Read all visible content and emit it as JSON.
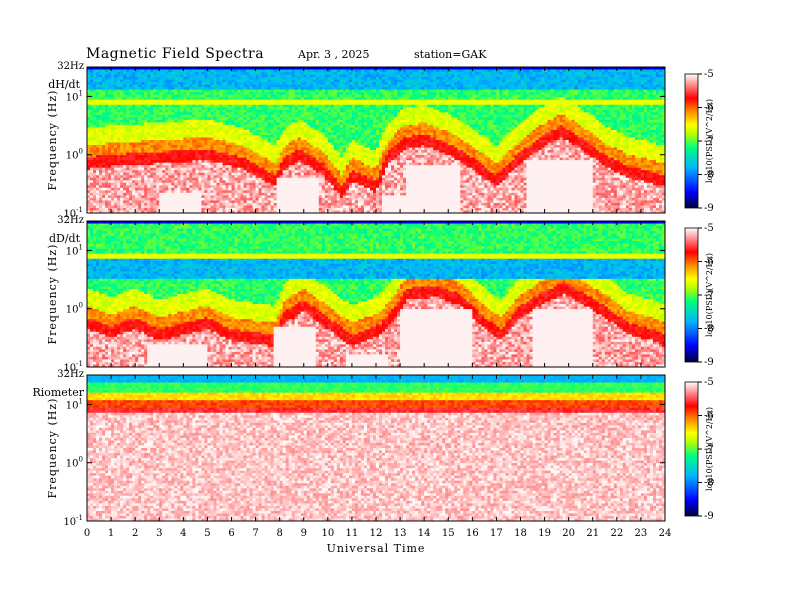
{
  "header": {
    "title": "Magnetic  Field  Spectra",
    "date": "Apr. 3  , 2025",
    "station": "station=GAK"
  },
  "colors": {
    "scale": [
      "#00003c",
      "#0000ff",
      "#00b4ff",
      "#00ff80",
      "#b4ff00",
      "#ffff00",
      "#ff8c00",
      "#ff0000",
      "#ffffff"
    ],
    "background": "#ffffff",
    "axes": "#000000"
  },
  "chart_data": [
    {
      "type": "heatmap",
      "panel_label": "dH/dt",
      "ylabel": "Frequency  (Hz)",
      "xlabel": "Universal  Time",
      "xlim": [
        0,
        24
      ],
      "ylim": [
        0.1,
        32
      ],
      "y_scale": "log",
      "y_ticks": [
        {
          "base": "10",
          "exp": "-1"
        },
        {
          "base": "10",
          "exp": "0"
        },
        {
          "base": "10",
          "exp": "1"
        }
      ],
      "y_top_label": "32Hz",
      "x_ticks": [
        "0",
        "1",
        "2",
        "3",
        "4",
        "5",
        "6",
        "7",
        "8",
        "9",
        "10",
        "11",
        "12",
        "13",
        "14",
        "15",
        "16",
        "17",
        "18",
        "19",
        "20",
        "21",
        "22",
        "23",
        "24"
      ],
      "colorbar": {
        "min": -9,
        "max": -5,
        "ticks": [
          "-5",
          "-6",
          "-7",
          "-8",
          "-9"
        ],
        "label": "log10(PSD)(V^2/Hz)"
      },
      "red_boundary_log_hz": [
        [
          0.0,
          -0.1
        ],
        [
          1.0,
          -0.05
        ],
        [
          3.0,
          0.0
        ],
        [
          5.0,
          0.05
        ],
        [
          6.5,
          -0.1
        ],
        [
          7.8,
          -0.4
        ],
        [
          8.2,
          -0.1
        ],
        [
          8.8,
          0.05
        ],
        [
          9.8,
          -0.2
        ],
        [
          10.6,
          -0.6
        ],
        [
          11.0,
          -0.3
        ],
        [
          12.0,
          -0.5
        ],
        [
          12.5,
          0.0
        ],
        [
          13.2,
          0.25
        ],
        [
          14.0,
          0.3
        ],
        [
          15.0,
          0.15
        ],
        [
          16.0,
          -0.1
        ],
        [
          17.0,
          -0.4
        ],
        [
          18.0,
          0.0
        ],
        [
          19.0,
          0.3
        ],
        [
          19.7,
          0.45
        ],
        [
          20.5,
          0.25
        ],
        [
          21.5,
          -0.05
        ],
        [
          22.5,
          -0.25
        ],
        [
          23.5,
          -0.35
        ],
        [
          24.0,
          -0.4
        ]
      ],
      "white_gaps": [
        [
          3.0,
          4.8,
          -1.0,
          -0.65
        ],
        [
          7.9,
          9.6,
          -1.0,
          -0.4
        ],
        [
          12.3,
          13.2,
          -1.0,
          -0.7
        ],
        [
          13.2,
          15.5,
          -1.0,
          -0.2
        ],
        [
          18.3,
          21.0,
          -1.0,
          -0.1
        ]
      ],
      "blue_band_log_hz": [
        1.1,
        1.5
      ]
    },
    {
      "type": "heatmap",
      "panel_label": "dD/dt",
      "ylabel": "Frequency  (Hz)",
      "xlabel": "Universal  Time",
      "xlim": [
        0,
        24
      ],
      "ylim": [
        0.1,
        32
      ],
      "y_scale": "log",
      "y_ticks": [
        {
          "base": "10",
          "exp": "-1"
        },
        {
          "base": "10",
          "exp": "0"
        },
        {
          "base": "10",
          "exp": "1"
        }
      ],
      "y_top_label": "32Hz",
      "x_ticks": [
        "0",
        "1",
        "2",
        "3",
        "4",
        "5",
        "6",
        "7",
        "8",
        "9",
        "10",
        "11",
        "12",
        "13",
        "14",
        "15",
        "16",
        "17",
        "18",
        "19",
        "20",
        "21",
        "22",
        "23",
        "24"
      ],
      "colorbar": {
        "min": -9,
        "max": -5,
        "ticks": [
          "-5",
          "-6",
          "-7",
          "-8",
          "-9"
        ],
        "label": "log10(PSD)(V^2/Hz)"
      },
      "red_boundary_log_hz": [
        [
          0.0,
          -0.2
        ],
        [
          1.0,
          -0.35
        ],
        [
          2.0,
          -0.2
        ],
        [
          3.0,
          -0.4
        ],
        [
          5.0,
          -0.2
        ],
        [
          6.0,
          -0.4
        ],
        [
          7.8,
          -0.5
        ],
        [
          8.2,
          -0.1
        ],
        [
          9.0,
          0.1
        ],
        [
          10.0,
          -0.2
        ],
        [
          11.0,
          -0.5
        ],
        [
          12.2,
          -0.3
        ],
        [
          12.8,
          0.0
        ],
        [
          13.3,
          0.3
        ],
        [
          14.5,
          0.35
        ],
        [
          15.5,
          0.2
        ],
        [
          16.5,
          -0.2
        ],
        [
          17.2,
          -0.4
        ],
        [
          18.0,
          0.0
        ],
        [
          19.0,
          0.25
        ],
        [
          19.8,
          0.4
        ],
        [
          20.5,
          0.25
        ],
        [
          21.5,
          0.0
        ],
        [
          22.5,
          -0.3
        ],
        [
          23.5,
          -0.4
        ],
        [
          24.0,
          -0.5
        ]
      ],
      "white_gaps": [
        [
          2.5,
          5.0,
          -1.0,
          -0.6
        ],
        [
          7.8,
          9.5,
          -1.0,
          -0.3
        ],
        [
          10.8,
          12.5,
          -1.0,
          -0.8
        ],
        [
          13.0,
          16.0,
          -1.0,
          0.0
        ],
        [
          18.5,
          21.0,
          -1.0,
          0.0
        ]
      ],
      "blue_band_log_hz": [
        0.5,
        0.95
      ]
    },
    {
      "type": "heatmap",
      "panel_label": "Riometer",
      "ylabel": "Frequency  (Hz)",
      "xlabel": "Universal  Time",
      "xlim": [
        0,
        24
      ],
      "ylim": [
        0.1,
        32
      ],
      "y_scale": "log",
      "y_ticks": [
        {
          "base": "10",
          "exp": "-1"
        },
        {
          "base": "10",
          "exp": "0"
        },
        {
          "base": "10",
          "exp": "1"
        }
      ],
      "y_top_label": "32Hz",
      "x_ticks": [
        "0",
        "1",
        "2",
        "3",
        "4",
        "5",
        "6",
        "7",
        "8",
        "9",
        "10",
        "11",
        "12",
        "13",
        "14",
        "15",
        "16",
        "17",
        "18",
        "19",
        "20",
        "21",
        "22",
        "23",
        "24"
      ],
      "colorbar": {
        "min": -9,
        "max": -5,
        "ticks": [
          "-5",
          "-6",
          "-7",
          "-8",
          "-9"
        ],
        "label": "log10(PSD)(V^2/Hz)"
      },
      "red_boundary_log_hz": [
        [
          0.0,
          0.85
        ],
        [
          24.0,
          0.85
        ]
      ],
      "white_gaps": [],
      "blue_band_log_hz": [
        1.3,
        1.5
      ]
    }
  ]
}
